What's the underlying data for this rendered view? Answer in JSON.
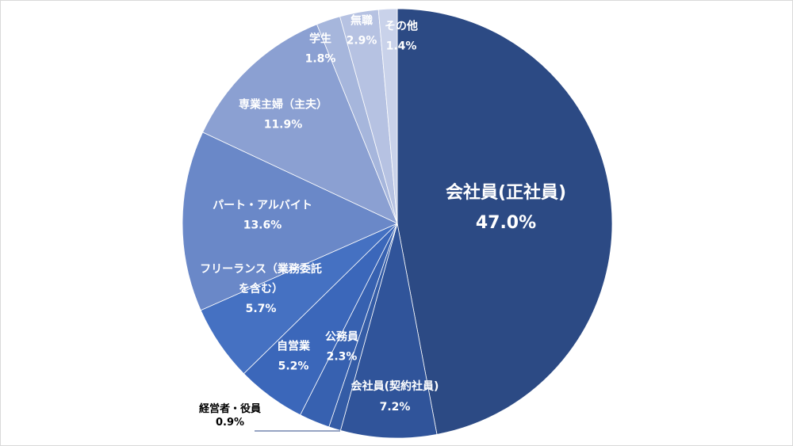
{
  "chart_data": {
    "type": "pie",
    "slices": [
      {
        "label": "会社員(正社員)",
        "value": 47.0,
        "value_text": "47.0%",
        "color": "#2c4a84"
      },
      {
        "label": "会社員(契約社員)",
        "value": 7.2,
        "value_text": "7.2%",
        "color": "#30549a"
      },
      {
        "label": "経営者・役員",
        "value": 0.9,
        "value_text": "0.9%",
        "color": "#345ca6"
      },
      {
        "label": "公務員",
        "value": 2.3,
        "value_text": "2.3%",
        "color": "#3761b0"
      },
      {
        "label": "自営業",
        "value": 5.2,
        "value_text": "5.2%",
        "color": "#3b67ba"
      },
      {
        "label": "フリーランス（業務委託を含む）",
        "label_lines": [
          "フリーランス（業務委託",
          "を含む）"
        ],
        "value": 5.7,
        "value_text": "5.7%",
        "color": "#4571c2"
      },
      {
        "label": "パート・アルバイト",
        "value": 13.6,
        "value_text": "13.6%",
        "color": "#6a88c8"
      },
      {
        "label": "専業主婦（主夫）",
        "value": 11.9,
        "value_text": "11.9%",
        "color": "#8ba0d2"
      },
      {
        "label": "学生",
        "value": 1.8,
        "value_text": "1.8%",
        "color": "#a6b6dc"
      },
      {
        "label": "無職",
        "value": 2.9,
        "value_text": "2.9%",
        "color": "#b6c2e2"
      },
      {
        "label": "その他",
        "value": 1.4,
        "value_text": "1.4%",
        "color": "#c9d2ea"
      }
    ],
    "start_angle": "12 o'clock",
    "direction": "clockwise",
    "legend": "none"
  }
}
